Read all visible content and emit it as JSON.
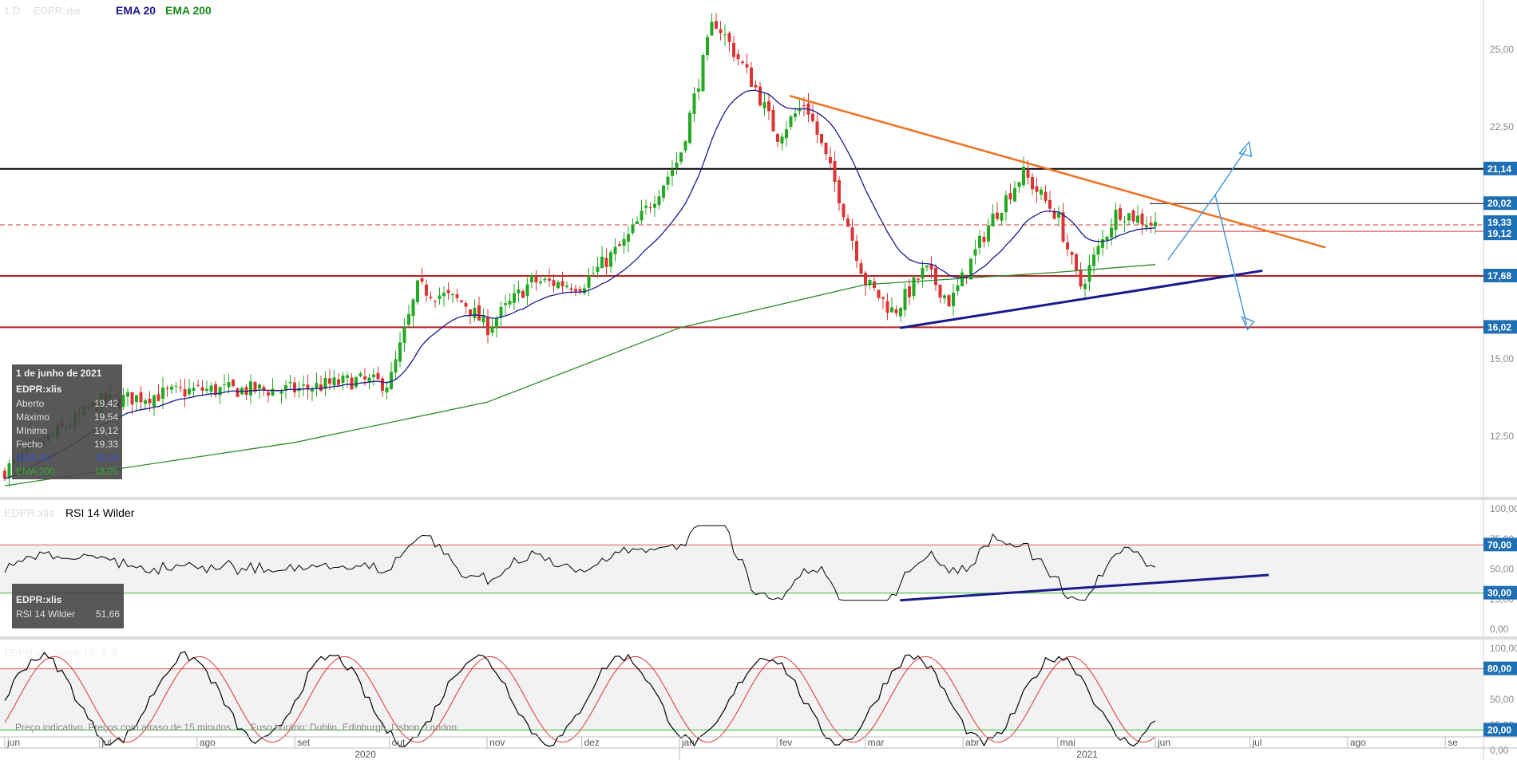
{
  "header": {
    "timeframe": "1 D",
    "symbol": "EDPR:xlis",
    "ema20_label": "EMA 20",
    "ema200_label": "EMA 200"
  },
  "colors": {
    "ema20": "#1a1a8c",
    "ema200": "#2a8a2a",
    "up": "#22aa22",
    "down": "#dd3333",
    "rsi_line": "#000000",
    "stoch_k": "#000000",
    "stoch_d": "#dd3333",
    "trend_orange": "#f07020",
    "trend_navy": "#1a1a8c",
    "arrow_blue": "#4a9ad8",
    "support_red": "#b22222",
    "resistance_black": "#000000"
  },
  "info_box": {
    "date": "1 de junho de 2021",
    "symbol": "EDPR:xlis",
    "rows": [
      {
        "label": "Aberto",
        "value": "19,42"
      },
      {
        "label": "Máximo",
        "value": "19,54"
      },
      {
        "label": "Mínimo",
        "value": "19,12"
      },
      {
        "label": "Fecho",
        "value": "19,33"
      },
      {
        "label": "EMA 20",
        "value": "19,24"
      },
      {
        "label": "EMA 200",
        "value": "18,05"
      }
    ]
  },
  "rsi_header": {
    "symbol": "EDPR:xlis",
    "label": "RSI 14 Wilder"
  },
  "rsi_box": {
    "symbol": "EDPR:xlis",
    "label": "RSI 14 Wilder",
    "value": "51,66"
  },
  "stoch_header": "EDPR:xlis Stoch 10; 3; 3",
  "footer_note": "Preço indicativo. Preços com atraso de 15 minutos",
  "timezone_note": "Fuso horário: Dublin, Edinburgh, Lisbon, London",
  "price_tag_labels": [
    "21,14",
    "20,02",
    "19,33",
    "19,12",
    "17,68",
    "16,02"
  ],
  "chart_data": {
    "type": "candlestick",
    "title": "",
    "y_ticks": [
      "25,00",
      "22,50",
      "15,00",
      "12,50"
    ],
    "y_range": [
      10.9,
      26.6
    ],
    "months": [
      "jun",
      "jul",
      "ago",
      "set",
      "out",
      "nov",
      "dez",
      "jan",
      "fev",
      "mar",
      "abr",
      "mai",
      "jun",
      "jul",
      "ago",
      "se"
    ],
    "years": [
      "2020",
      "2021"
    ],
    "price_path": [
      {
        "date": "2020-06-01",
        "close": 11.4
      },
      {
        "date": "2020-07-01",
        "close": 13.6
      },
      {
        "date": "2020-08-01",
        "close": 14.0
      },
      {
        "date": "2020-09-01",
        "close": 14.0
      },
      {
        "date": "2020-09-20",
        "close": 14.3
      },
      {
        "date": "2020-10-01",
        "close": 14.2
      },
      {
        "date": "2020-10-10",
        "close": 17.3
      },
      {
        "date": "2020-10-25",
        "close": 16.8
      },
      {
        "date": "2020-11-01",
        "close": 16.0
      },
      {
        "date": "2020-11-15",
        "close": 17.5
      },
      {
        "date": "2020-12-01",
        "close": 17.4
      },
      {
        "date": "2020-12-15",
        "close": 18.8
      },
      {
        "date": "2021-01-01",
        "close": 21.5
      },
      {
        "date": "2021-01-12",
        "close": 26.0
      },
      {
        "date": "2021-01-25",
        "close": 23.8
      },
      {
        "date": "2021-02-01",
        "close": 22.2
      },
      {
        "date": "2021-02-10",
        "close": 23.3
      },
      {
        "date": "2021-02-20",
        "close": 20.5
      },
      {
        "date": "2021-03-01",
        "close": 17.5
      },
      {
        "date": "2021-03-10",
        "close": 16.5
      },
      {
        "date": "2021-03-20",
        "close": 17.9
      },
      {
        "date": "2021-03-28",
        "close": 16.8
      },
      {
        "date": "2021-04-10",
        "close": 19.5
      },
      {
        "date": "2021-04-20",
        "close": 21.0
      },
      {
        "date": "2021-05-01",
        "close": 19.6
      },
      {
        "date": "2021-05-08",
        "close": 17.3
      },
      {
        "date": "2021-05-20",
        "close": 19.8
      },
      {
        "date": "2021-06-01",
        "close": 19.33
      }
    ],
    "ema200_path": [
      {
        "date": "2020-06-01",
        "value": 10.9
      },
      {
        "date": "2020-09-01",
        "value": 12.3
      },
      {
        "date": "2020-11-01",
        "value": 13.6
      },
      {
        "date": "2021-01-01",
        "value": 16.0
      },
      {
        "date": "2021-03-01",
        "value": 17.4
      },
      {
        "date": "2021-05-01",
        "value": 17.8
      },
      {
        "date": "2021-06-01",
        "value": 18.05
      }
    ],
    "horizontal_levels": [
      {
        "value": 21.14,
        "color": "#000000",
        "label": "21,14"
      },
      {
        "value": 20.02,
        "color": "#000000",
        "label": "20,02"
      },
      {
        "value": 19.33,
        "color": "#dd3333",
        "label": "19,33"
      },
      {
        "value": 19.12,
        "color": "#dd3333",
        "label": "19,12"
      },
      {
        "value": 17.68,
        "color": "#b22222",
        "label": "17,68"
      },
      {
        "value": 16.02,
        "color": "#b22222",
        "label": "16,02"
      }
    ],
    "trendlines": [
      {
        "name": "descending resistance",
        "from": {
          "date": "2021-02-05",
          "value": 23.5
        },
        "to": {
          "date": "2021-07-25",
          "value": 18.6
        }
      },
      {
        "name": "ascending support",
        "from": {
          "date": "2021-03-12",
          "value": 16.0
        },
        "to": {
          "date": "2021-07-05",
          "value": 17.85
        }
      }
    ],
    "rsi": {
      "label": "RSI 14 Wilder",
      "last": 51.66,
      "levels": [
        70,
        30
      ],
      "y_ticks": [
        "100,00",
        "75,00",
        "50,00",
        "25,00",
        "0,00"
      ],
      "level_tags": [
        "70,00",
        "30,00"
      ]
    },
    "stochastic": {
      "label": "Stoch 10; 3; 3",
      "levels": [
        80,
        20
      ],
      "y_ticks": [
        "100,00",
        "50,00",
        "25,00",
        "0,00"
      ],
      "level_tags": [
        "80,00",
        "20,00"
      ]
    }
  }
}
